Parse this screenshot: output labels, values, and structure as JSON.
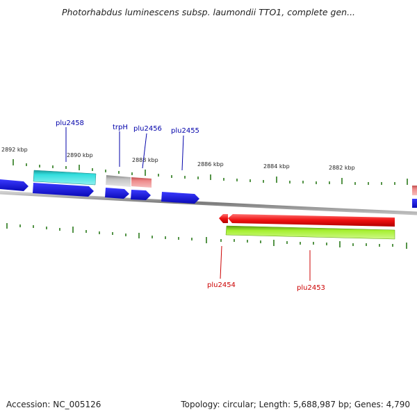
{
  "title": "Photorhabdus luminescens subsp. laumondii TTO1, complete gen...",
  "footer": {
    "accession": "Accession: NC_005126",
    "summary": "Topology: circular; Length: 5,688,987 bp; Genes: 4,790"
  },
  "kbp_labels": [
    "2892 kbp",
    "2890 kbp",
    "2888 kbp",
    "2886 kbp",
    "2884 kbp",
    "2882 kbp"
  ],
  "genes_forward_labeled": [
    "plu2458",
    "trpH",
    "plu2456",
    "plu2455"
  ],
  "genes_reverse_labeled": [
    "plu2454",
    "plu2453"
  ],
  "colors": {
    "backbone": "#8a8a8a",
    "tick": "#2a7a1a",
    "forward_label": "#0000aa",
    "reverse_label": "#cc0000",
    "cds_blue": "#1a1ae6",
    "cyan": "#28c8c8",
    "grey": "#b4b4b4",
    "pink": "#e87878",
    "red": "#ee1010",
    "lime": "#99ee22"
  }
}
